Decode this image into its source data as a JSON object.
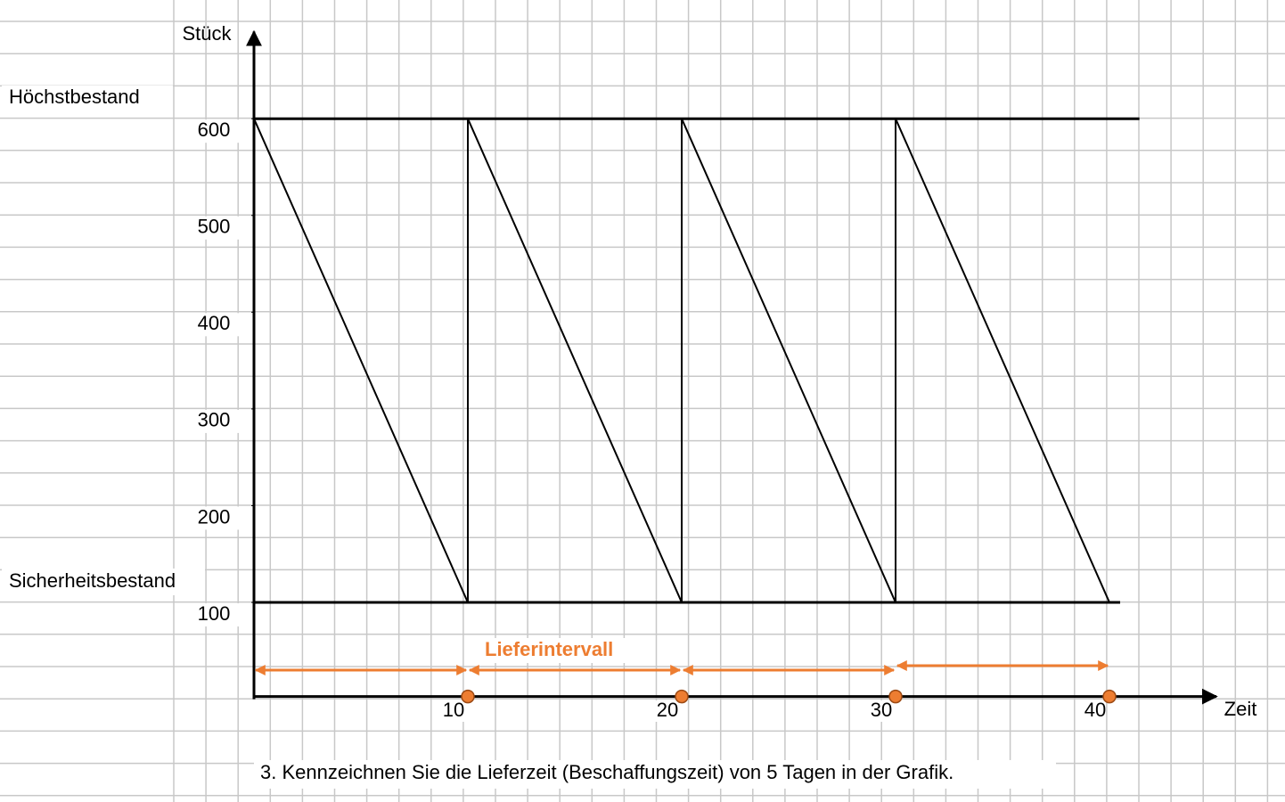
{
  "chart_data": {
    "type": "line",
    "y_label": "Stück",
    "x_label": "Zeit",
    "x": [
      0,
      10,
      10,
      20,
      20,
      30,
      30,
      40
    ],
    "values": [
      600,
      100,
      600,
      100,
      600,
      100,
      600,
      100
    ],
    "color": "#000000",
    "xlim": [
      0,
      45
    ],
    "ylim": [
      0,
      690
    ],
    "xticks": [
      10,
      20,
      30,
      40
    ],
    "yticks": [
      100,
      200,
      300,
      400,
      500,
      600
    ],
    "reference_lines": [
      {
        "label": "Höchstbestand",
        "value": 600,
        "x_end": 41.4
      },
      {
        "label": "Sicherheitsbestand",
        "value": 100,
        "x_end": 40.5
      }
    ],
    "intervals": {
      "label": "Lieferintervall",
      "color": "#ed7d31",
      "ranges": [
        [
          0,
          10
        ],
        [
          10,
          20
        ],
        [
          20,
          30
        ],
        [
          30,
          40
        ]
      ]
    },
    "footnote": "3. Kennzeichnen Sie die Lieferzeit (Beschaffungszeit) von 5 Tagen in der Grafik."
  }
}
